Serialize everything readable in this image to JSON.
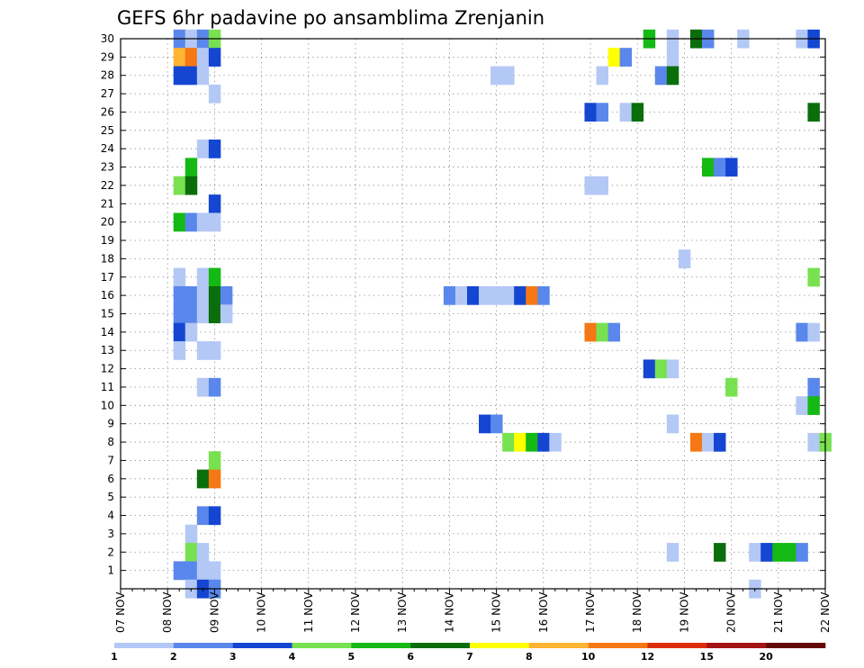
{
  "chart_data": {
    "type": "heatmap",
    "title": "GEFS 6hr padavine po ansamblima Zrenjanin",
    "xlabel": "",
    "ylabel": "",
    "x_ticks": [
      "07 NOV",
      "08 NOV",
      "09 NOV",
      "10 NOV",
      "11 NOV",
      "12 NOV",
      "13 NOV",
      "14 NOV",
      "15 NOV",
      "16 NOV",
      "17 NOV",
      "18 NOV",
      "19 NOV",
      "20 NOV",
      "21 NOV",
      "22 NOV"
    ],
    "y_ticks": [
      "1",
      "2",
      "3",
      "4",
      "5",
      "6",
      "7",
      "8",
      "9",
      "10",
      "11",
      "12",
      "13",
      "14",
      "15",
      "16",
      "17",
      "18",
      "19",
      "20",
      "21",
      "22",
      "23",
      "24",
      "25",
      "26",
      "27",
      "28",
      "29",
      "30"
    ],
    "x_range": [
      "07 NOV 00Z",
      "22 NOV 00Z"
    ],
    "time_step_hours": 6,
    "y_range": [
      0,
      30
    ],
    "grid": "dotted",
    "colorbar": {
      "position": "bottom",
      "levels": [
        "1",
        "2",
        "3",
        "4",
        "5",
        "6",
        "7",
        "8",
        "10",
        "12",
        "15",
        "20"
      ],
      "colors": [
        "#b4c8f5",
        "#5a87eb",
        "#1446d2",
        "#78e150",
        "#14b914",
        "#0a6e0a",
        "#ffff00",
        "#ffb432",
        "#f57814",
        "#dc2d0a",
        "#a51414",
        "#640a0a"
      ]
    },
    "cells": [
      {
        "member": 30,
        "cells": [
          [
            "08 NOV 06Z",
            2
          ],
          [
            "08 NOV 12Z",
            1
          ],
          [
            "08 NOV 18Z",
            2
          ],
          [
            "09 NOV 00Z",
            4
          ],
          [
            "18 NOV 06Z",
            5
          ],
          [
            "18 NOV 18Z",
            1
          ],
          [
            "19 NOV 06Z",
            6
          ],
          [
            "19 NOV 12Z",
            2
          ],
          [
            "20 NOV 06Z",
            1
          ],
          [
            "21 NOV 12Z",
            1
          ],
          [
            "21 NOV 18Z",
            3
          ]
        ]
      },
      {
        "member": 29,
        "cells": [
          [
            "08 NOV 06Z",
            8
          ],
          [
            "08 NOV 12Z",
            9
          ],
          [
            "08 NOV 18Z",
            1
          ],
          [
            "09 NOV 00Z",
            3
          ],
          [
            "17 NOV 12Z",
            7
          ],
          [
            "17 NOV 18Z",
            2
          ],
          [
            "18 NOV 18Z",
            1
          ]
        ]
      },
      {
        "member": 28,
        "cells": [
          [
            "08 NOV 06Z",
            3
          ],
          [
            "08 NOV 12Z",
            3
          ],
          [
            "08 NOV 18Z",
            1
          ],
          [
            "15 NOV 00Z",
            1
          ],
          [
            "15 NOV 06Z",
            1
          ],
          [
            "17 NOV 06Z",
            1
          ],
          [
            "18 NOV 12Z",
            2
          ],
          [
            "18 NOV 18Z",
            6
          ]
        ]
      },
      {
        "member": 27,
        "cells": [
          [
            "09 NOV 00Z",
            1
          ]
        ]
      },
      {
        "member": 26,
        "cells": [
          [
            "17 NOV 00Z",
            3
          ],
          [
            "17 NOV 06Z",
            2
          ],
          [
            "17 NOV 18Z",
            1
          ],
          [
            "18 NOV 00Z",
            6
          ],
          [
            "21 NOV 18Z",
            6
          ]
        ]
      },
      {
        "member": 24,
        "cells": [
          [
            "08 NOV 18Z",
            1
          ],
          [
            "09 NOV 00Z",
            3
          ]
        ]
      },
      {
        "member": 23,
        "cells": [
          [
            "08 NOV 12Z",
            5
          ],
          [
            "19 NOV 12Z",
            5
          ],
          [
            "19 NOV 18Z",
            2
          ],
          [
            "20 NOV 00Z",
            3
          ]
        ]
      },
      {
        "member": 22,
        "cells": [
          [
            "08 NOV 06Z",
            4
          ],
          [
            "08 NOV 12Z",
            6
          ],
          [
            "17 NOV 00Z",
            1
          ],
          [
            "17 NOV 06Z",
            1
          ]
        ]
      },
      {
        "member": 21,
        "cells": [
          [
            "09 NOV 00Z",
            3
          ]
        ]
      },
      {
        "member": 20,
        "cells": [
          [
            "08 NOV 06Z",
            5
          ],
          [
            "08 NOV 12Z",
            2
          ],
          [
            "08 NOV 18Z",
            1
          ],
          [
            "09 NOV 00Z",
            1
          ]
        ]
      },
      {
        "member": 18,
        "cells": [
          [
            "19 NOV 00Z",
            1
          ]
        ]
      },
      {
        "member": 17,
        "cells": [
          [
            "08 NOV 06Z",
            1
          ],
          [
            "08 NOV 18Z",
            1
          ],
          [
            "09 NOV 00Z",
            5
          ],
          [
            "21 NOV 18Z",
            4
          ]
        ]
      },
      {
        "member": 16,
        "cells": [
          [
            "08 NOV 06Z",
            2
          ],
          [
            "08 NOV 12Z",
            2
          ],
          [
            "08 NOV 18Z",
            1
          ],
          [
            "09 NOV 00Z",
            6
          ],
          [
            "09 NOV 06Z",
            2
          ],
          [
            "14 NOV 00Z",
            2
          ],
          [
            "14 NOV 06Z",
            1
          ],
          [
            "14 NOV 12Z",
            3
          ],
          [
            "14 NOV 18Z",
            1
          ],
          [
            "15 NOV 00Z",
            1
          ],
          [
            "15 NOV 06Z",
            1
          ],
          [
            "15 NOV 12Z",
            3
          ],
          [
            "15 NOV 18Z",
            9
          ],
          [
            "16 NOV 00Z",
            2
          ]
        ]
      },
      {
        "member": 15,
        "cells": [
          [
            "08 NOV 06Z",
            2
          ],
          [
            "08 NOV 12Z",
            2
          ],
          [
            "08 NOV 18Z",
            1
          ],
          [
            "09 NOV 00Z",
            6
          ],
          [
            "09 NOV 06Z",
            1
          ]
        ]
      },
      {
        "member": 14,
        "cells": [
          [
            "08 NOV 06Z",
            3
          ],
          [
            "08 NOV 12Z",
            1
          ],
          [
            "17 NOV 00Z",
            9
          ],
          [
            "17 NOV 06Z",
            4
          ],
          [
            "17 NOV 12Z",
            2
          ],
          [
            "21 NOV 12Z",
            2
          ],
          [
            "21 NOV 18Z",
            1
          ]
        ]
      },
      {
        "member": 13,
        "cells": [
          [
            "08 NOV 06Z",
            1
          ],
          [
            "08 NOV 18Z",
            1
          ],
          [
            "09 NOV 00Z",
            1
          ]
        ]
      },
      {
        "member": 12,
        "cells": [
          [
            "18 NOV 06Z",
            3
          ],
          [
            "18 NOV 12Z",
            4
          ],
          [
            "18 NOV 18Z",
            1
          ]
        ]
      },
      {
        "member": 11,
        "cells": [
          [
            "08 NOV 18Z",
            1
          ],
          [
            "09 NOV 00Z",
            2
          ],
          [
            "20 NOV 00Z",
            4
          ],
          [
            "21 NOV 18Z",
            2
          ]
        ]
      },
      {
        "member": 10,
        "cells": [
          [
            "21 NOV 12Z",
            1
          ],
          [
            "21 NOV 18Z",
            5
          ]
        ]
      },
      {
        "member": 9,
        "cells": [
          [
            "14 NOV 18Z",
            3
          ],
          [
            "15 NOV 00Z",
            2
          ],
          [
            "18 NOV 18Z",
            1
          ]
        ]
      },
      {
        "member": 8,
        "cells": [
          [
            "15 NOV 06Z",
            4
          ],
          [
            "15 NOV 12Z",
            7
          ],
          [
            "15 NOV 18Z",
            5
          ],
          [
            "16 NOV 00Z",
            3
          ],
          [
            "16 NOV 06Z",
            1
          ],
          [
            "19 NOV 06Z",
            9
          ],
          [
            "19 NOV 12Z",
            1
          ],
          [
            "19 NOV 18Z",
            3
          ],
          [
            "21 NOV 18Z",
            1
          ],
          [
            "22 NOV 00Z",
            4
          ]
        ]
      },
      {
        "member": 7,
        "cells": [
          [
            "09 NOV 00Z",
            4
          ]
        ]
      },
      {
        "member": 6,
        "cells": [
          [
            "08 NOV 18Z",
            6
          ],
          [
            "09 NOV 00Z",
            9
          ]
        ]
      },
      {
        "member": 4,
        "cells": [
          [
            "08 NOV 18Z",
            2
          ],
          [
            "09 NOV 00Z",
            3
          ]
        ]
      },
      {
        "member": 3,
        "cells": [
          [
            "08 NOV 12Z",
            1
          ]
        ]
      },
      {
        "member": 2,
        "cells": [
          [
            "08 NOV 12Z",
            4
          ],
          [
            "08 NOV 18Z",
            1
          ],
          [
            "18 NOV 18Z",
            1
          ],
          [
            "19 NOV 18Z",
            6
          ],
          [
            "20 NOV 12Z",
            1
          ],
          [
            "20 NOV 18Z",
            3
          ],
          [
            "21 NOV 00Z",
            5
          ],
          [
            "21 NOV 06Z",
            5
          ],
          [
            "21 NOV 12Z",
            2
          ]
        ]
      },
      {
        "member": 1,
        "cells": [
          [
            "08 NOV 06Z",
            2
          ],
          [
            "08 NOV 12Z",
            2
          ],
          [
            "08 NOV 18Z",
            1
          ],
          [
            "09 NOV 00Z",
            1
          ]
        ]
      },
      {
        "member": 0,
        "cells": [
          [
            "08 NOV 12Z",
            1
          ],
          [
            "08 NOV 18Z",
            3
          ],
          [
            "09 NOV 00Z",
            2
          ],
          [
            "20 NOV 12Z",
            1
          ]
        ]
      }
    ]
  }
}
